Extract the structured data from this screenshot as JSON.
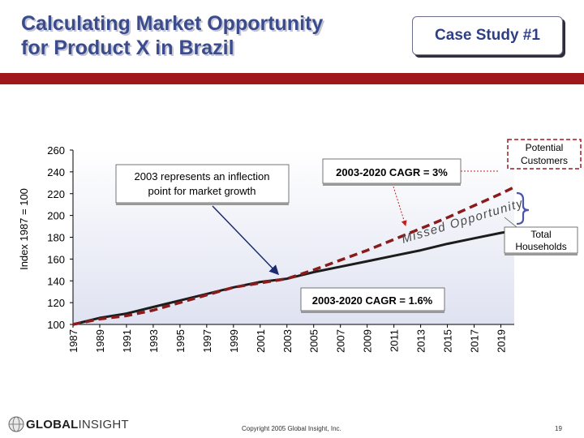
{
  "header": {
    "title_line1": "Calculating Market Opportunity",
    "title_line2": "for Product X in Brazil",
    "case_study": "Case Study #1"
  },
  "footer": {
    "copyright": "Copyright 2005 Global Insight, Inc.",
    "page_number": "19",
    "logo_part1": "GLOBAL",
    "logo_part2": "INSIGHT"
  },
  "colors": {
    "title": "#3b4c8c",
    "accent_bar": "#a0181b",
    "households_line": "#1c1c1c",
    "customers_line": "#8b1a1a",
    "plot_background_bottom": "#dfe2f1"
  },
  "chart_data": {
    "type": "line",
    "ylabel": "Index 1987 = 100",
    "xlabel": "",
    "ylim": [
      100,
      260
    ],
    "yticks": [
      100,
      120,
      140,
      160,
      180,
      200,
      220,
      240,
      260
    ],
    "xlim": [
      1987,
      2020
    ],
    "xticks": [
      1987,
      1989,
      1991,
      1993,
      1995,
      1997,
      1999,
      2001,
      2003,
      2005,
      2007,
      2009,
      2011,
      2013,
      2015,
      2017,
      2019
    ],
    "series": [
      {
        "key": "households",
        "style": "solid",
        "color": "#1c1c1c",
        "x": [
          1987,
          1989,
          1991,
          1993,
          1995,
          1997,
          1999,
          2001,
          2003,
          2005,
          2007,
          2009,
          2011,
          2013,
          2015,
          2017,
          2019,
          2020
        ],
        "values": [
          100,
          106,
          110,
          116,
          122,
          128,
          134,
          139,
          142,
          148,
          153,
          158,
          163,
          168,
          174,
          179,
          184,
          186
        ]
      },
      {
        "key": "customers",
        "style": "dashed",
        "color": "#8b1a1a",
        "x": [
          1987,
          1989,
          1991,
          1993,
          1995,
          1997,
          1999,
          2001,
          2003,
          2005,
          2007,
          2009,
          2011,
          2013,
          2015,
          2017,
          2019,
          2020
        ],
        "values": [
          100,
          105,
          108,
          113,
          120,
          127,
          134,
          138,
          142,
          150,
          159,
          168,
          178,
          188,
          198,
          209,
          220,
          226
        ]
      }
    ],
    "annotations": {
      "inflection_box": [
        "2003 represents an inflection",
        "point for market growth"
      ],
      "cagr_top": "2003-2020 CAGR = 3%",
      "cagr_bottom": "2003-2020 CAGR = 1.6%",
      "potential_customers": [
        "Potential",
        "Customers"
      ],
      "total_households": [
        "Total",
        "Households"
      ],
      "missed_opportunity": "Missed Opportunity"
    }
  }
}
